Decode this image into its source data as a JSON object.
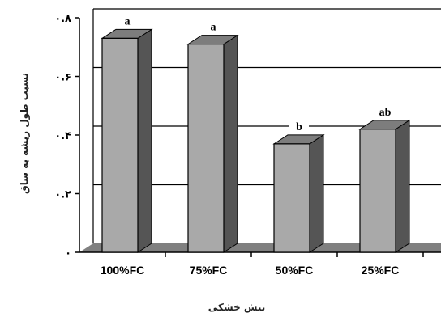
{
  "chart_data": {
    "type": "bar",
    "categories": [
      "100%FC",
      "75%FC",
      "50%FC",
      "25%FC"
    ],
    "values": [
      0.73,
      0.71,
      0.37,
      0.42
    ],
    "significance_labels": [
      "a",
      "a",
      "b",
      "ab"
    ],
    "y_tick_labels": [
      "۰",
      "۰.۲",
      "۰.۴",
      "۰.۶",
      "۰.۸"
    ],
    "ylim": [
      0,
      0.8
    ],
    "xlabel": "تنش خشکی",
    "ylabel": "نسبت طول ریشه به ساق",
    "grid": true,
    "style": "3d",
    "colors": {
      "bar_front": "#a9a9a9",
      "bar_side": "#555555",
      "bar_top": "#7d7d7d",
      "floor": "#808080",
      "grid": "#000000"
    }
  }
}
